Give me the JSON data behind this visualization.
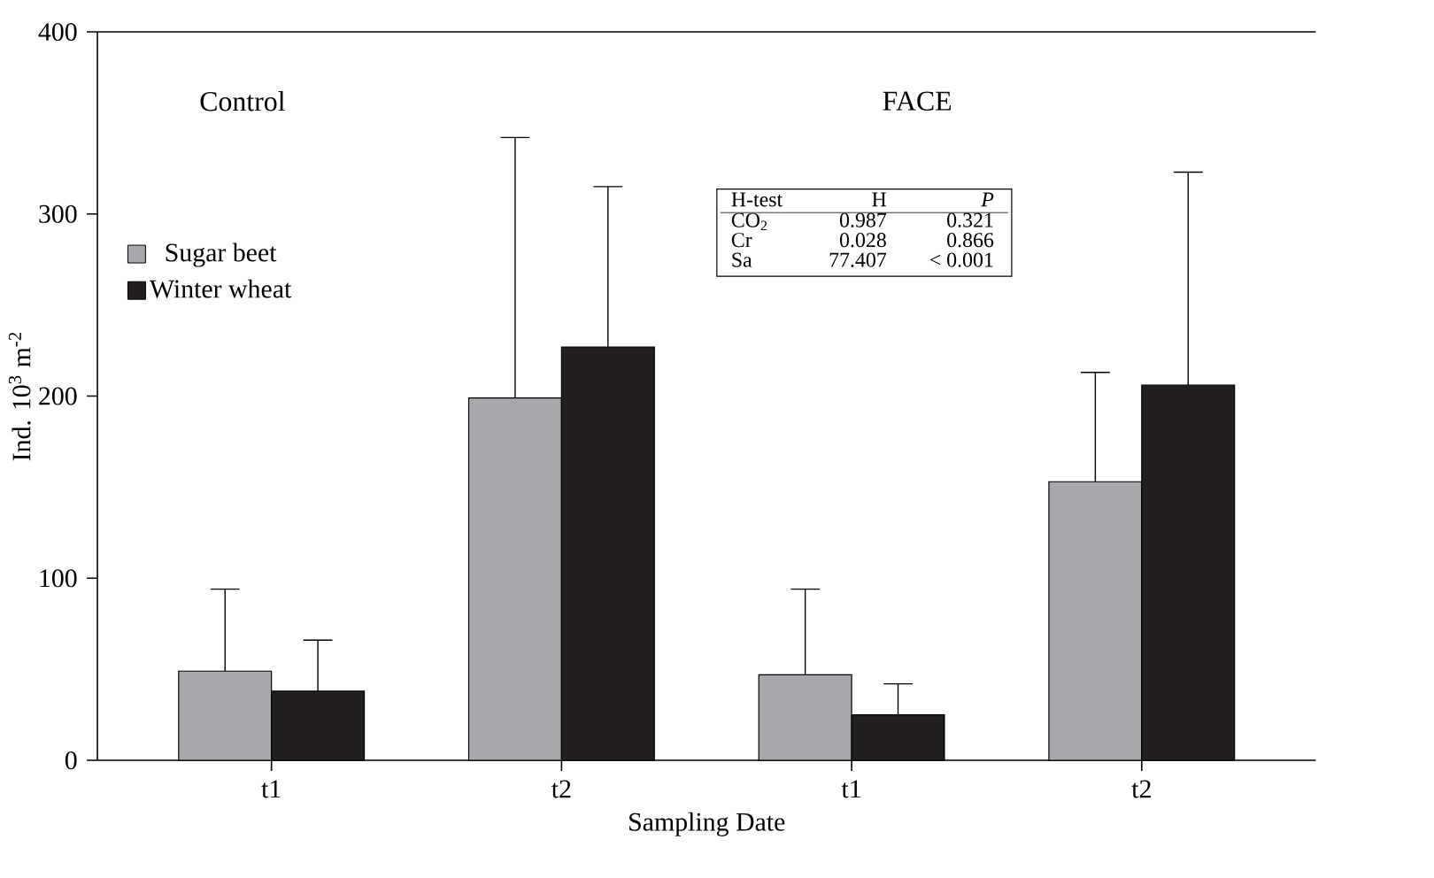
{
  "chart_data": {
    "type": "bar",
    "xlabel": "Sampling Date",
    "ylabel": "Ind. 10$^{3}$ m$^{-2}$",
    "categories": [
      "t1",
      "t2",
      "t1",
      "t2"
    ],
    "series": [
      {
        "name": "Sugar beet",
        "color": "#a7a8ab",
        "values": [
          49,
          199,
          47,
          153
        ],
        "errors": [
          [
            49,
            94
          ],
          [
            199,
            342
          ],
          [
            47,
            94
          ],
          [
            153,
            213
          ]
        ]
      },
      {
        "name": "Winter wheat",
        "color": "#231f20",
        "values": [
          38,
          227,
          25,
          206
        ],
        "errors": [
          [
            38,
            66
          ],
          [
            227,
            315
          ],
          [
            25,
            42
          ],
          [
            206,
            323
          ]
        ]
      }
    ],
    "ylim": [
      0,
      400
    ],
    "yticks": [
      0,
      100,
      200,
      300,
      400
    ],
    "legend": "left",
    "grid": false,
    "annotations": [
      "Control",
      "FACE",
      "H-test",
      "H",
      "P",
      "CO$_{2}$",
      "0.987",
      "0.321",
      "Cr",
      "0.028",
      "0.866",
      "Sa",
      "77.407",
      "< 0.001"
    ]
  }
}
